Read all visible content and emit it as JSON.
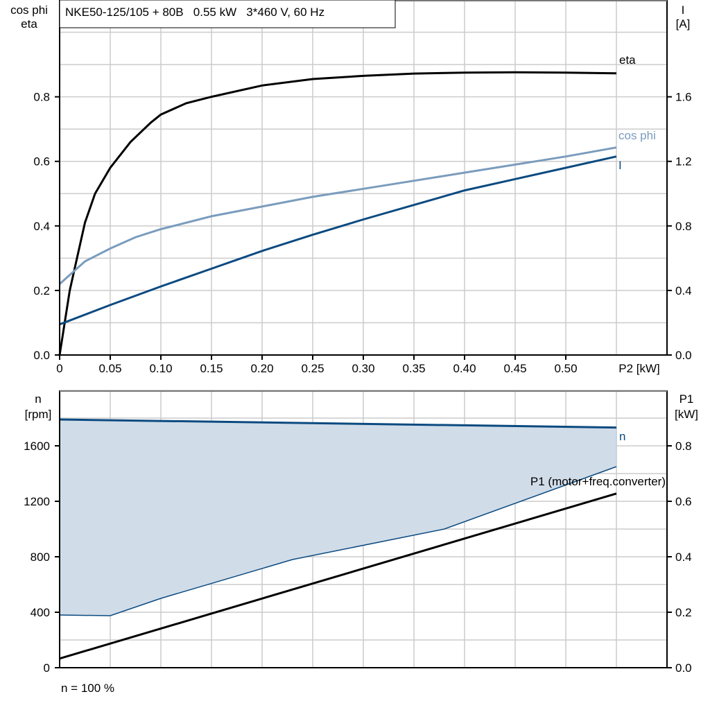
{
  "chart_data": [
    {
      "type": "line",
      "title": "NKE50-125/105 + 80B   0.55 kW   3*460 V, 60 Hz",
      "xlabel": "P2 [kW]",
      "ylabel_left": [
        "cos phi",
        "eta"
      ],
      "ylabel_right": [
        "I",
        "[A]"
      ],
      "xlim": [
        0,
        0.6
      ],
      "ylim_left": [
        0,
        1.1
      ],
      "ylim_right": [
        0,
        2.2
      ],
      "grid": true,
      "x_ticks": [
        "0",
        "0.05",
        "0.10",
        "0.15",
        "0.20",
        "0.25",
        "0.30",
        "0.35",
        "0.40",
        "0.45",
        "0.50"
      ],
      "y_ticks_left": [
        "0.0",
        "0.2",
        "0.4",
        "0.6",
        "0.8"
      ],
      "y_ticks_right": [
        "0.0",
        "0.4",
        "0.8",
        "1.2",
        "1.6"
      ],
      "series": [
        {
          "name": "eta",
          "axis": "left",
          "color": "#000000",
          "x": [
            0,
            0.01,
            0.025,
            0.035,
            0.05,
            0.07,
            0.09,
            0.1,
            0.125,
            0.15,
            0.2,
            0.25,
            0.3,
            0.35,
            0.4,
            0.45,
            0.5,
            0.55
          ],
          "y": [
            0,
            0.2,
            0.41,
            0.5,
            0.58,
            0.66,
            0.72,
            0.745,
            0.78,
            0.8,
            0.835,
            0.855,
            0.865,
            0.872,
            0.875,
            0.876,
            0.875,
            0.873
          ]
        },
        {
          "name": "cos phi",
          "axis": "left",
          "color": "#7a9cbd",
          "x": [
            0,
            0.025,
            0.05,
            0.075,
            0.1,
            0.15,
            0.2,
            0.25,
            0.3,
            0.35,
            0.4,
            0.45,
            0.5,
            0.55
          ],
          "y": [
            0.22,
            0.29,
            0.33,
            0.365,
            0.39,
            0.43,
            0.46,
            0.49,
            0.515,
            0.54,
            0.565,
            0.59,
            0.615,
            0.643
          ]
        },
        {
          "name": "I",
          "axis": "right",
          "color": "#0b4a80",
          "x": [
            0,
            0.05,
            0.1,
            0.15,
            0.2,
            0.25,
            0.3,
            0.35,
            0.4,
            0.45,
            0.5,
            0.55
          ],
          "y": [
            0.19,
            0.31,
            0.425,
            0.535,
            0.645,
            0.745,
            0.84,
            0.93,
            1.02,
            1.09,
            1.16,
            1.23
          ]
        }
      ]
    },
    {
      "type": "line",
      "xlabel": "",
      "ylabel_left": [
        "n",
        "[rpm]"
      ],
      "ylabel_right": [
        "P1",
        "[kW]"
      ],
      "footer": "n = 100 %",
      "xlim": [
        0,
        0.6
      ],
      "ylim_left": [
        0,
        2000
      ],
      "ylim_right": [
        0,
        1.0
      ],
      "grid": true,
      "y_ticks_left": [
        "0",
        "400",
        "800",
        "1200",
        "1600"
      ],
      "y_ticks_right": [
        "0.0",
        "0.2",
        "0.4",
        "0.6",
        "0.8"
      ],
      "series": [
        {
          "name": "n",
          "axis": "left",
          "color": "#0b4a80",
          "x": [
            0,
            0.55
          ],
          "y": [
            1790,
            1732
          ]
        },
        {
          "name": "",
          "axis": "left",
          "color": "#0b4a80",
          "role": "shaded-range-lower-bound",
          "fill": "#d0dce8",
          "x": [
            0,
            0.05,
            0.1,
            0.23,
            0.38,
            0.55
          ],
          "y": [
            380,
            375,
            500,
            780,
            1000,
            1450
          ]
        },
        {
          "name": "P1 (motor+freq.converter)",
          "axis": "right",
          "color": "#000000",
          "x": [
            0,
            0.55
          ],
          "y": [
            0.033,
            0.628
          ]
        }
      ]
    }
  ]
}
